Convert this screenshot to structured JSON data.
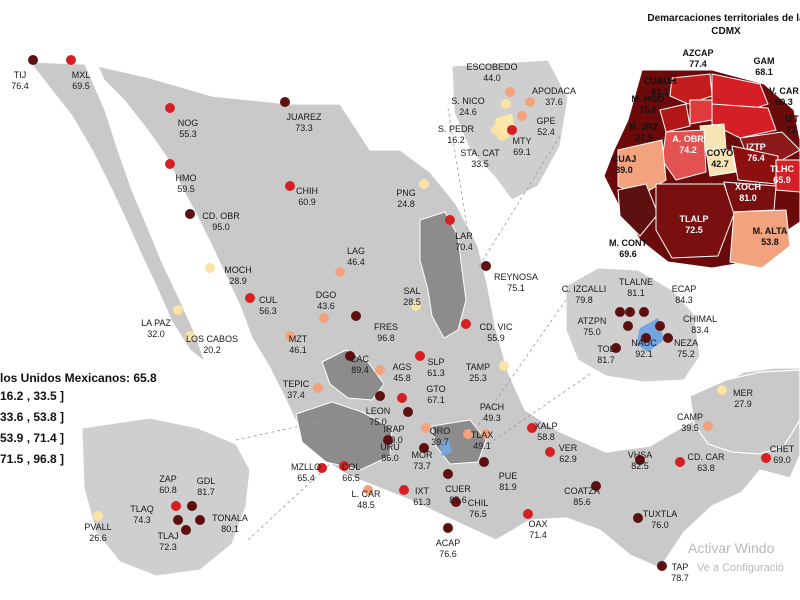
{
  "top_title": "(",
  "cdmx_title": "Demarcaciones territoriales de la CDMX",
  "legend": {
    "title": "los Unidos Mexicanos: 65.8",
    "ranges": [
      "16.2 , 33.5 ]",
      "33.6 , 53.8 ]",
      "53.9 , 71.4 ]",
      "71.5 , 96.8 ]"
    ],
    "colors": [
      "#fbe3a6",
      "#f2a27c",
      "#d42025",
      "#5c1010"
    ]
  },
  "watermark": {
    "line1": "Activar Windo",
    "line2": "Ve a Configuració"
  },
  "cities": [
    {
      "name": "TIJ",
      "value": "76.4"
    },
    {
      "name": "MXL",
      "value": "69.5"
    },
    {
      "name": "NOG",
      "value": "55.3"
    },
    {
      "name": "JUAREZ",
      "value": "73.3"
    },
    {
      "name": "HMO",
      "value": "59.5"
    },
    {
      "name": "CHIH",
      "value": "60.9"
    },
    {
      "name": "CD. OBR",
      "value": "95.0"
    },
    {
      "name": "PNG",
      "value": "24.8"
    },
    {
      "name": "LAR",
      "value": "70.4"
    },
    {
      "name": "LAG",
      "value": "46.4"
    },
    {
      "name": "MOCH",
      "value": "28.9"
    },
    {
      "name": "DGO",
      "value": "43.6"
    },
    {
      "name": "SAL",
      "value": "28.5"
    },
    {
      "name": "REYNOSA",
      "value": "75.1"
    },
    {
      "name": "CUL",
      "value": "56.3"
    },
    {
      "name": "LA PAZ",
      "value": "32.0"
    },
    {
      "name": "LOS CABOS",
      "value": "20.2"
    },
    {
      "name": "MZT",
      "value": "46.1"
    },
    {
      "name": "FRES",
      "value": "96.8"
    },
    {
      "name": "CD. VIC",
      "value": "55.9"
    },
    {
      "name": "ZAC",
      "value": "89.4"
    },
    {
      "name": "AGS",
      "value": "45.8"
    },
    {
      "name": "SLP",
      "value": "61.3"
    },
    {
      "name": "TAMP",
      "value": "25.3"
    },
    {
      "name": "TEPIC",
      "value": "37.4"
    },
    {
      "name": "LEON",
      "value": "75.0"
    },
    {
      "name": "GTO",
      "value": "67.1"
    },
    {
      "name": "PACH",
      "value": "49.3"
    },
    {
      "name": "IRAP",
      "value": "89.0"
    },
    {
      "name": "QRO",
      "value": "39.7"
    },
    {
      "name": "TLAX",
      "value": "49.1"
    },
    {
      "name": "XALP",
      "value": "58.8"
    },
    {
      "name": "URU",
      "value": "86.0"
    },
    {
      "name": "MOR",
      "value": "73.7"
    },
    {
      "name": "VER",
      "value": "62.9"
    },
    {
      "name": "MZLLO",
      "value": "65.4"
    },
    {
      "name": "COL",
      "value": "66.5"
    },
    {
      "name": "PUE",
      "value": "81.9"
    },
    {
      "name": "L. CAR",
      "value": "48.5"
    },
    {
      "name": "IXT",
      "value": "61.3"
    },
    {
      "name": "CUER",
      "value": "85.6"
    },
    {
      "name": "CHIL",
      "value": "76.5"
    },
    {
      "name": "COATZA",
      "value": "85.6"
    },
    {
      "name": "OAX",
      "value": "71.4"
    },
    {
      "name": "ACAP",
      "value": "76.6"
    },
    {
      "name": "VHSA",
      "value": "82.5"
    },
    {
      "name": "CD. CAR",
      "value": "63.8"
    },
    {
      "name": "CHET",
      "value": "69.0"
    },
    {
      "name": "CAMP",
      "value": "39.5"
    },
    {
      "name": "MER",
      "value": "27.9"
    },
    {
      "name": "TUXTLA",
      "value": "76.0"
    },
    {
      "name": "TAP",
      "value": "78.7"
    },
    {
      "name": "ZAP",
      "value": "60.8"
    },
    {
      "name": "GDL",
      "value": "81.7"
    },
    {
      "name": "TLAQ",
      "value": "74.3"
    },
    {
      "name": "TONALA",
      "value": "80.1"
    },
    {
      "name": "TLAJ",
      "value": "72.3"
    },
    {
      "name": "PVALL",
      "value": "26.6"
    },
    {
      "name": "ESCOBEDO",
      "value": "44.0"
    },
    {
      "name": "APODACA",
      "value": "37.6"
    },
    {
      "name": "S. NICO",
      "value": "24.6"
    },
    {
      "name": "GPE",
      "value": "52.4"
    },
    {
      "name": "S. PEDR",
      "value": "16.2"
    },
    {
      "name": "MTY",
      "value": "69.1"
    },
    {
      "name": "STA. CAT",
      "value": "33.5"
    },
    {
      "name": "C. IZCALLI",
      "value": "79.8"
    },
    {
      "name": "TLALNE",
      "value": "81.1"
    },
    {
      "name": "ECAP",
      "value": "84.3"
    },
    {
      "name": "CHIMAL",
      "value": "83.4"
    },
    {
      "name": "ATZPN",
      "value": "75.0"
    },
    {
      "name": "NAUC",
      "value": "92.1"
    },
    {
      "name": "NEZA",
      "value": "75.2"
    },
    {
      "name": "TOL",
      "value": "81.7"
    }
  ],
  "cdmx_units": [
    {
      "name": "AZCAP",
      "value": "77.4"
    },
    {
      "name": "GAM",
      "value": "68.1"
    },
    {
      "name": "CUAUH",
      "value": "61.1"
    },
    {
      "name": "V. CAR",
      "value": "60.3"
    },
    {
      "name": "M. HGO",
      "value": "75.6"
    },
    {
      "name": "IZT",
      "value": "73."
    },
    {
      "name": "B. JRZ",
      "value": "27.5"
    },
    {
      "name": "A. OBR",
      "value": "74.2"
    },
    {
      "name": "COYO",
      "value": "42.7"
    },
    {
      "name": "IZTP",
      "value": "76.4"
    },
    {
      "name": "CUAJ",
      "value": "39.0"
    },
    {
      "name": "TLHC",
      "value": "65.9"
    },
    {
      "name": "XOCH",
      "value": "81.0"
    },
    {
      "name": "M. CONT",
      "value": "69.6"
    },
    {
      "name": "TLALP",
      "value": "72.5"
    },
    {
      "name": "M. ALTA",
      "value": "53.8"
    }
  ]
}
